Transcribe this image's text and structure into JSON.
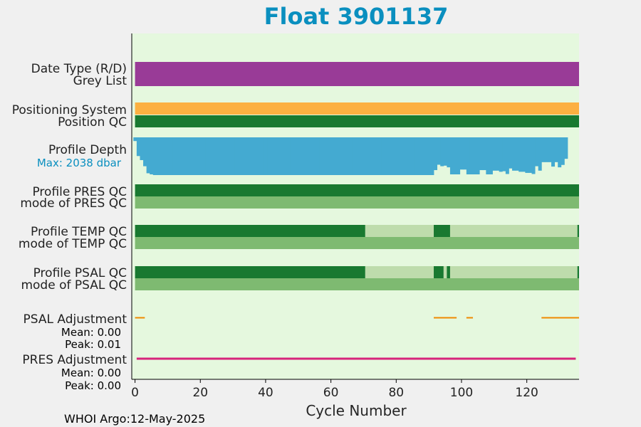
{
  "chart_data": {
    "type": "bar",
    "title": "Float 3901137",
    "xlabel": "Cycle Number",
    "xlim": [
      -1,
      136
    ],
    "xticks": [
      0,
      20,
      40,
      60,
      80,
      100,
      120
    ],
    "footer": "WHOI Argo:12-May-2025",
    "rows": [
      {
        "label": "Date Type (R/D)",
        "color": "#993b97",
        "segments": [
          [
            0,
            136
          ]
        ]
      },
      {
        "label": "Grey List",
        "color": "#993b97",
        "segments": [
          [
            0,
            136
          ]
        ]
      },
      {
        "label": "Positioning System",
        "color": "#fcb041",
        "segments": [
          [
            0,
            136
          ]
        ]
      },
      {
        "label": "Position QC",
        "color": "#197930",
        "segments": [
          [
            0,
            136
          ]
        ]
      },
      {
        "label": "Profile PRES QC",
        "color": "#197930",
        "segments": [
          [
            0,
            136
          ]
        ]
      },
      {
        "label": "mode of PRES QC",
        "color": "#7eba71",
        "segments": [
          [
            0,
            136
          ]
        ]
      },
      {
        "label": "Profile TEMP QC",
        "color": "#197930",
        "segments": [
          [
            0,
            70.5
          ],
          [
            91.5,
            96.5
          ],
          [
            135.5,
            136
          ]
        ],
        "alt_color": "#bedcac",
        "alt_segments": [
          [
            70.5,
            91.5
          ],
          [
            96.5,
            135.5
          ]
        ]
      },
      {
        "label": "mode of TEMP QC",
        "color": "#7eba71",
        "segments": [
          [
            0,
            136
          ]
        ]
      },
      {
        "label": "Profile PSAL QC",
        "color": "#197930",
        "segments": [
          [
            0,
            70.5
          ],
          [
            91.5,
            94.5
          ],
          [
            95.5,
            96.5
          ],
          [
            135.5,
            136
          ]
        ],
        "alt_color": "#bedcac",
        "alt_segments": [
          [
            70.5,
            91.5
          ],
          [
            94.5,
            95.5
          ],
          [
            96.5,
            135.5
          ]
        ]
      }
    ],
    "mode_psal_label": "mode of PSAL QC",
    "profile_depth": {
      "label": "Profile Depth",
      "max_label": "Max: 2038 dbar",
      "max": 2038,
      "color": "#44aad1",
      "cycles_start": 0,
      "depths": [
        200,
        1010,
        1230,
        1560,
        1940,
        2000,
        2038,
        2038,
        2038,
        2038,
        2038,
        2038,
        2038,
        2038,
        2038,
        2038,
        2038,
        2038,
        2038,
        2038,
        2038,
        2038,
        2038,
        2038,
        2038,
        2038,
        2038,
        2038,
        2038,
        2038,
        2038,
        2038,
        2038,
        2038,
        2038,
        2038,
        2038,
        2038,
        2038,
        2038,
        2038,
        2038,
        2038,
        2038,
        2038,
        2038,
        2038,
        2038,
        2038,
        2038,
        2038,
        2038,
        2038,
        2038,
        2038,
        2038,
        2038,
        2038,
        2038,
        2038,
        2038,
        2038,
        2038,
        2038,
        2038,
        2038,
        2038,
        2038,
        2038,
        2038,
        2038,
        2038,
        2038,
        2038,
        2038,
        2038,
        2038,
        2038,
        2038,
        2038,
        2038,
        2038,
        2038,
        2038,
        2038,
        2038,
        2038,
        2038,
        2038,
        2038,
        2038,
        2038,
        1770,
        1480,
        1560,
        1530,
        1620,
        2000,
        2000,
        2000,
        1740,
        1740,
        2000,
        2000,
        2000,
        2000,
        1770,
        1770,
        2000,
        2000,
        1800,
        1800,
        1860,
        1830,
        1980,
        1680,
        1800,
        1800,
        1860,
        1860,
        1920,
        1920,
        1980,
        1560,
        1800,
        1340,
        1340,
        1340,
        1580,
        1340,
        1620,
        1490,
        1160
      ]
    },
    "psal_adjustment": {
      "label": "PSAL Adjustment",
      "mean_label": "Mean: 0.00",
      "peak_label": "Peak: 0.01",
      "color": "#f08a00",
      "segments": [
        [
          0,
          3
        ],
        [
          91.5,
          98.5
        ],
        [
          101.5,
          103.5
        ],
        [
          124.5,
          136
        ]
      ]
    },
    "pres_adjustment": {
      "label": "PRES Adjustment",
      "mean_label": "Mean: 0.00",
      "peak_label": "Peak: 0.00",
      "color": "#d6247a",
      "segments": [
        [
          0,
          135
        ]
      ]
    }
  }
}
